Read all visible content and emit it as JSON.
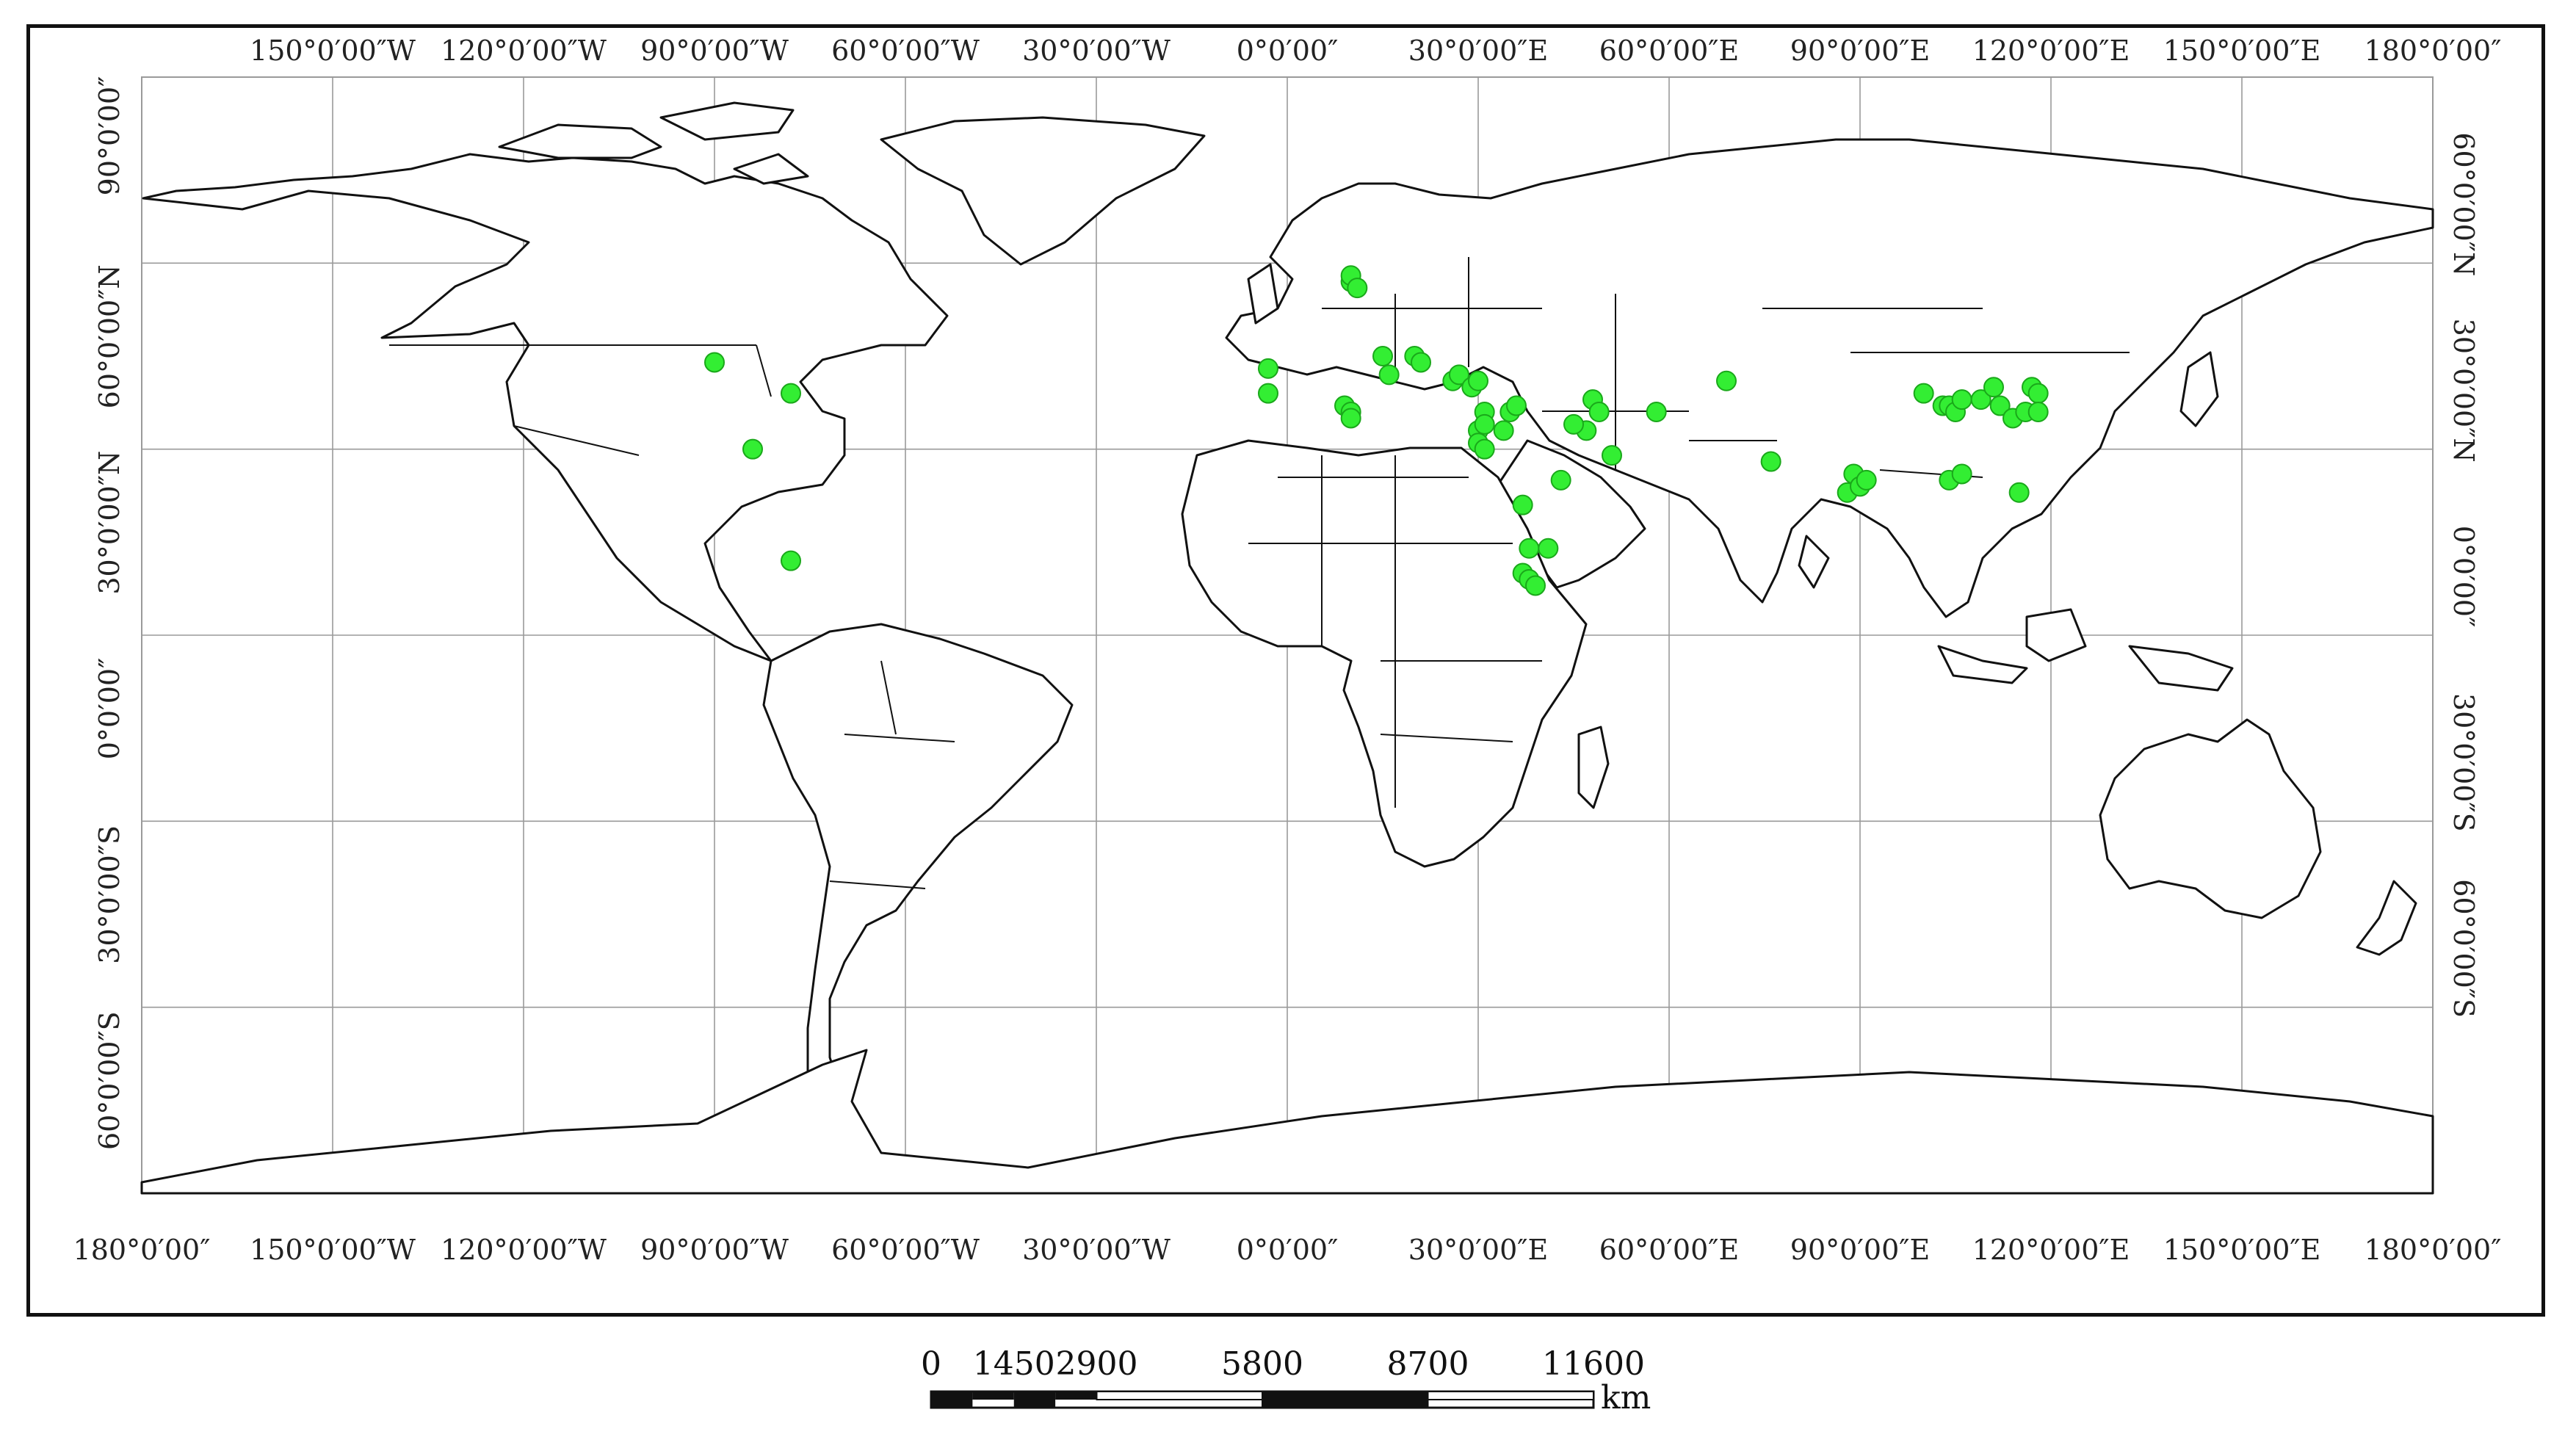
{
  "graticule": {
    "longitudes": [
      -180,
      -150,
      -120,
      -90,
      -60,
      -30,
      0,
      30,
      60,
      90,
      120,
      150,
      180
    ],
    "latitudes": [
      90,
      60,
      30,
      0,
      -30,
      -60
    ],
    "top_labels": [
      "150°0′00″W",
      "120°0′00″W",
      "90°0′00″W",
      "60°0′00″W",
      "30°0′00″W",
      "0°0′00″",
      "30°0′00″E",
      "60°0′00″E",
      "90°0′00″E",
      "120°0′00″E",
      "150°0′00″E",
      "180°0′00″"
    ],
    "bottom_labels": [
      "180°0′00″",
      "150°0′00″W",
      "120°0′00″W",
      "90°0′00″W",
      "60°0′00″W",
      "30°0′00″W",
      "0°0′00″",
      "30°0′00″E",
      "60°0′00″E",
      "90°0′00″E",
      "120°0′00″E",
      "150°0′00″E",
      "180°0′00″"
    ],
    "left_labels": [
      "90°0′00″",
      "60°0′00″N",
      "30°0′00″N",
      "0°0′00″",
      "30°0′00″S",
      "60°0′00″S"
    ],
    "right_labels": [
      "60°0′00″N",
      "30°0′00″N",
      "0°0′00″",
      "30°0′00″S",
      "60°0′00″S"
    ]
  },
  "sites": [
    [
      -90,
      44
    ],
    [
      -78,
      39
    ],
    [
      -84,
      30
    ],
    [
      -78,
      12
    ],
    [
      -3,
      43
    ],
    [
      -3,
      39
    ],
    [
      10,
      57
    ],
    [
      10,
      58
    ],
    [
      11,
      56
    ],
    [
      9,
      37
    ],
    [
      10,
      36
    ],
    [
      10,
      35
    ],
    [
      15,
      45
    ],
    [
      16,
      42
    ],
    [
      20,
      45
    ],
    [
      21,
      44
    ],
    [
      26,
      41
    ],
    [
      27,
      42
    ],
    [
      29,
      40
    ],
    [
      30,
      41
    ],
    [
      31,
      36
    ],
    [
      30,
      33
    ],
    [
      31,
      34
    ],
    [
      30,
      31
    ],
    [
      31,
      30
    ],
    [
      35,
      36
    ],
    [
      36,
      37
    ],
    [
      34,
      33
    ],
    [
      47,
      33
    ],
    [
      48,
      38
    ],
    [
      45,
      34
    ],
    [
      49,
      36
    ],
    [
      51,
      29
    ],
    [
      43,
      25
    ],
    [
      37,
      21
    ],
    [
      38,
      14
    ],
    [
      41,
      14
    ],
    [
      37,
      10
    ],
    [
      38,
      9
    ],
    [
      39,
      8
    ],
    [
      58,
      36
    ],
    [
      69,
      41
    ],
    [
      76,
      28
    ],
    [
      89,
      26
    ],
    [
      88,
      23
    ],
    [
      90,
      24
    ],
    [
      91,
      25
    ],
    [
      100,
      39
    ],
    [
      103,
      37
    ],
    [
      104,
      37
    ],
    [
      105,
      36
    ],
    [
      106,
      38
    ],
    [
      109,
      38
    ],
    [
      111,
      40
    ],
    [
      112,
      37
    ],
    [
      114,
      35
    ],
    [
      116,
      36
    ],
    [
      117,
      40
    ],
    [
      118,
      39
    ],
    [
      118,
      36
    ],
    [
      104,
      25
    ],
    [
      106,
      26
    ],
    [
      115,
      23
    ]
  ],
  "scale_bar": {
    "labels": [
      "0",
      "1450",
      "2900",
      "5800",
      "8700",
      "11600"
    ],
    "km_values": [
      0,
      1450,
      2900,
      5800,
      8700,
      11600
    ],
    "unit": "km"
  }
}
